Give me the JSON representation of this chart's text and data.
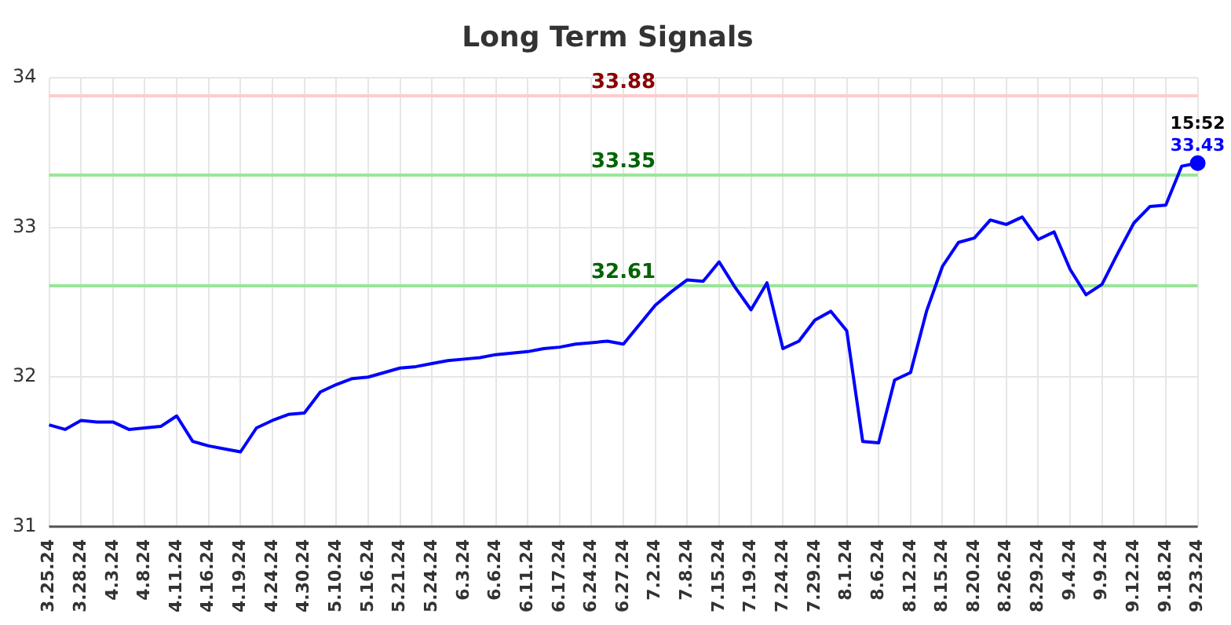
{
  "chart_data": {
    "type": "line",
    "title": "Long Term Signals",
    "categories": [
      "3.25.24",
      null,
      "3.28.24",
      null,
      "4.3.24",
      null,
      "4.8.24",
      null,
      "4.11.24",
      null,
      "4.16.24",
      null,
      "4.19.24",
      null,
      "4.24.24",
      null,
      "4.30.24",
      null,
      "5.10.24",
      null,
      "5.16.24",
      null,
      "5.21.24",
      null,
      "5.24.24",
      null,
      "6.3.24",
      null,
      "6.6.24",
      null,
      "6.11.24",
      null,
      "6.17.24",
      null,
      "6.24.24",
      null,
      "6.27.24",
      null,
      "7.2.24",
      null,
      "7.8.24",
      null,
      "7.15.24",
      null,
      "7.19.24",
      null,
      "7.24.24",
      null,
      "7.29.24",
      null,
      "8.1.24",
      null,
      "8.6.24",
      null,
      "8.12.24",
      null,
      "8.15.24",
      null,
      "8.20.24",
      null,
      "8.26.24",
      null,
      "8.29.24",
      null,
      "9.4.24",
      null,
      "9.9.24",
      null,
      "9.12.24",
      null,
      "9.18.24",
      null,
      "9.23.24"
    ],
    "series": [
      {
        "color": "#0000ff",
        "values": [
          31.68,
          31.65,
          31.71,
          31.7,
          31.7,
          31.65,
          31.66,
          31.67,
          31.74,
          31.57,
          31.54,
          31.52,
          31.5,
          31.66,
          31.71,
          31.75,
          31.76,
          31.9,
          31.95,
          31.99,
          32.0,
          32.03,
          32.06,
          32.07,
          32.09,
          32.11,
          32.12,
          32.13,
          32.15,
          32.16,
          32.17,
          32.19,
          32.2,
          32.22,
          32.23,
          32.24,
          32.22,
          32.35,
          32.48,
          32.57,
          32.65,
          32.64,
          32.77,
          32.6,
          32.45,
          32.63,
          32.19,
          32.24,
          32.38,
          32.44,
          32.31,
          31.57,
          31.56,
          31.98,
          32.03,
          32.44,
          32.74,
          32.9,
          32.93,
          33.05,
          33.02,
          33.07,
          32.92,
          32.97,
          32.72,
          32.55,
          32.62,
          32.83,
          33.03,
          33.14,
          33.15,
          33.41,
          33.43
        ],
        "value_labels": [
          null,
          null,
          null,
          null,
          null,
          null,
          null,
          null,
          null,
          null,
          null,
          null,
          null,
          null,
          null,
          null,
          null,
          null,
          null,
          null,
          null,
          null,
          null,
          null,
          null,
          null,
          null,
          null,
          null,
          null,
          null,
          null,
          null,
          null,
          null,
          null,
          null,
          null,
          null,
          null,
          null,
          null,
          null,
          null,
          null,
          null,
          null,
          null,
          null,
          null,
          null,
          null,
          null,
          null,
          null,
          null,
          null,
          null,
          null,
          null,
          null,
          null,
          null,
          null,
          null,
          null,
          null,
          null,
          null,
          null,
          null,
          null,
          "33.43"
        ]
      }
    ],
    "ylim": [
      31,
      34
    ],
    "yticks": [
      31,
      32,
      33,
      34
    ],
    "grid": true,
    "legend": false,
    "ref_lines": [
      {
        "axis": "y",
        "value": 33.88,
        "label": "33.88",
        "color": "#ffcccc"
      },
      {
        "axis": "y",
        "value": 33.35,
        "label": "33.35",
        "color": "#99e699"
      },
      {
        "axis": "y",
        "value": 32.61,
        "label": "32.61",
        "color": "#99e699"
      }
    ],
    "annotations": [
      {
        "text": "15:52",
        "x": "9.23.24",
        "y": 33.43
      }
    ]
  }
}
